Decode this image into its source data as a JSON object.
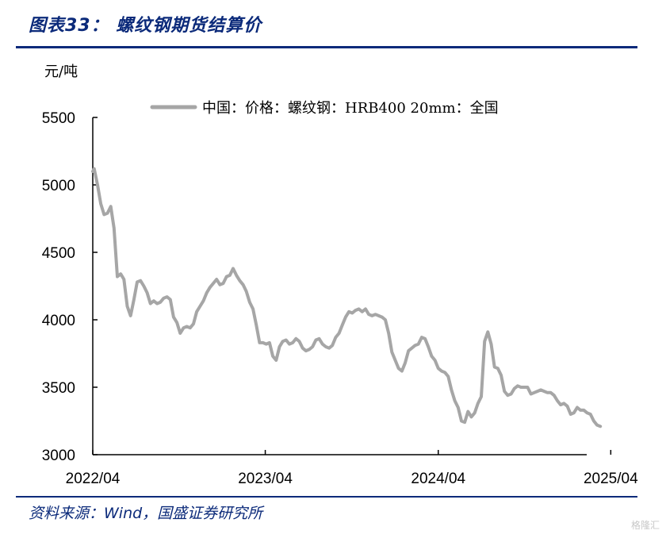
{
  "header": {
    "title": "图表33： 螺纹钢期货结算价"
  },
  "footer": {
    "source": "资料来源：Wind，国盛证券研究所"
  },
  "watermark": {
    "text": "格隆汇"
  },
  "chart_data": {
    "type": "line",
    "title": "",
    "ylabel": "元/吨",
    "xlabel": "",
    "ylim": [
      3000,
      5500
    ],
    "yticks": [
      3000,
      3500,
      4000,
      4500,
      5000,
      5500
    ],
    "xlim": [
      "2022-04-01",
      "2025-05-04"
    ],
    "xticks": [
      {
        "label": "2022/04",
        "date": "2022-04-01"
      },
      {
        "label": "2023/04",
        "date": "2023-04-01"
      },
      {
        "label": "2024/04",
        "date": "2024-04-01"
      },
      {
        "label": "2025/04",
        "date": "2025-04-01"
      }
    ],
    "legend_position": "top",
    "series": [
      {
        "name": "中国：价格：螺纹钢：HRB400 20mm：全国",
        "color": "#a6a6a6",
        "data": [
          [
            "2022-04-01",
            5100
          ],
          [
            "2022-04-04",
            5120
          ],
          [
            "2022-04-11",
            5000
          ],
          [
            "2022-04-18",
            4860
          ],
          [
            "2022-04-25",
            4780
          ],
          [
            "2022-05-02",
            4790
          ],
          [
            "2022-05-09",
            4840
          ],
          [
            "2022-05-16",
            4680
          ],
          [
            "2022-05-23",
            4320
          ],
          [
            "2022-05-30",
            4340
          ],
          [
            "2022-06-06",
            4300
          ],
          [
            "2022-06-13",
            4100
          ],
          [
            "2022-06-20",
            4030
          ],
          [
            "2022-06-27",
            4150
          ],
          [
            "2022-07-04",
            4280
          ],
          [
            "2022-07-11",
            4290
          ],
          [
            "2022-07-18",
            4250
          ],
          [
            "2022-07-25",
            4200
          ],
          [
            "2022-08-01",
            4120
          ],
          [
            "2022-08-08",
            4140
          ],
          [
            "2022-08-15",
            4120
          ],
          [
            "2022-08-22",
            4130
          ],
          [
            "2022-08-29",
            4160
          ],
          [
            "2022-09-05",
            4170
          ],
          [
            "2022-09-12",
            4150
          ],
          [
            "2022-09-19",
            4020
          ],
          [
            "2022-09-26",
            3980
          ],
          [
            "2022-10-03",
            3900
          ],
          [
            "2022-10-10",
            3940
          ],
          [
            "2022-10-17",
            3950
          ],
          [
            "2022-10-24",
            3940
          ],
          [
            "2022-10-31",
            3970
          ],
          [
            "2022-11-07",
            4060
          ],
          [
            "2022-11-14",
            4100
          ],
          [
            "2022-11-21",
            4140
          ],
          [
            "2022-11-28",
            4200
          ],
          [
            "2022-12-05",
            4240
          ],
          [
            "2022-12-12",
            4270
          ],
          [
            "2022-12-19",
            4300
          ],
          [
            "2022-12-26",
            4260
          ],
          [
            "2023-01-02",
            4270
          ],
          [
            "2023-01-09",
            4320
          ],
          [
            "2023-01-16",
            4330
          ],
          [
            "2023-01-23",
            4380
          ],
          [
            "2023-01-30",
            4330
          ],
          [
            "2023-02-06",
            4290
          ],
          [
            "2023-02-13",
            4260
          ],
          [
            "2023-02-20",
            4210
          ],
          [
            "2023-02-27",
            4130
          ],
          [
            "2023-03-06",
            4080
          ],
          [
            "2023-03-13",
            3960
          ],
          [
            "2023-03-20",
            3830
          ],
          [
            "2023-03-27",
            3830
          ],
          [
            "2023-04-03",
            3820
          ],
          [
            "2023-04-10",
            3830
          ],
          [
            "2023-04-17",
            3730
          ],
          [
            "2023-04-24",
            3700
          ],
          [
            "2023-05-01",
            3800
          ],
          [
            "2023-05-08",
            3840
          ],
          [
            "2023-05-15",
            3850
          ],
          [
            "2023-05-22",
            3820
          ],
          [
            "2023-05-29",
            3830
          ],
          [
            "2023-06-05",
            3860
          ],
          [
            "2023-06-12",
            3840
          ],
          [
            "2023-06-19",
            3790
          ],
          [
            "2023-06-26",
            3770
          ],
          [
            "2023-07-03",
            3780
          ],
          [
            "2023-07-10",
            3800
          ],
          [
            "2023-07-17",
            3850
          ],
          [
            "2023-07-24",
            3860
          ],
          [
            "2023-07-31",
            3820
          ],
          [
            "2023-08-07",
            3800
          ],
          [
            "2023-08-14",
            3790
          ],
          [
            "2023-08-21",
            3810
          ],
          [
            "2023-08-28",
            3870
          ],
          [
            "2023-09-04",
            3900
          ],
          [
            "2023-09-11",
            3960
          ],
          [
            "2023-09-18",
            4020
          ],
          [
            "2023-09-25",
            4060
          ],
          [
            "2023-10-02",
            4050
          ],
          [
            "2023-10-09",
            4070
          ],
          [
            "2023-10-16",
            4080
          ],
          [
            "2023-10-23",
            4060
          ],
          [
            "2023-10-30",
            4080
          ],
          [
            "2023-11-06",
            4040
          ],
          [
            "2023-11-13",
            4030
          ],
          [
            "2023-11-20",
            4040
          ],
          [
            "2023-11-27",
            4030
          ],
          [
            "2023-12-04",
            4020
          ],
          [
            "2023-12-11",
            4000
          ],
          [
            "2023-12-18",
            3900
          ],
          [
            "2023-12-25",
            3760
          ],
          [
            "2024-01-01",
            3700
          ],
          [
            "2024-01-08",
            3640
          ],
          [
            "2024-01-15",
            3620
          ],
          [
            "2024-01-22",
            3680
          ],
          [
            "2024-01-29",
            3770
          ],
          [
            "2024-02-05",
            3790
          ],
          [
            "2024-02-12",
            3810
          ],
          [
            "2024-02-19",
            3820
          ],
          [
            "2024-02-26",
            3870
          ],
          [
            "2024-03-04",
            3860
          ],
          [
            "2024-03-11",
            3800
          ],
          [
            "2024-03-18",
            3730
          ],
          [
            "2024-03-25",
            3700
          ],
          [
            "2024-04-01",
            3640
          ],
          [
            "2024-04-08",
            3620
          ],
          [
            "2024-04-15",
            3610
          ],
          [
            "2024-04-22",
            3580
          ],
          [
            "2024-04-29",
            3480
          ],
          [
            "2024-05-06",
            3400
          ],
          [
            "2024-05-13",
            3350
          ],
          [
            "2024-05-20",
            3250
          ],
          [
            "2024-05-27",
            3240
          ],
          [
            "2024-06-03",
            3320
          ],
          [
            "2024-06-10",
            3280
          ],
          [
            "2024-06-17",
            3310
          ],
          [
            "2024-06-24",
            3380
          ],
          [
            "2024-07-01",
            3430
          ],
          [
            "2024-07-08",
            3840
          ],
          [
            "2024-07-15",
            3910
          ],
          [
            "2024-07-22",
            3820
          ],
          [
            "2024-07-29",
            3650
          ],
          [
            "2024-08-05",
            3640
          ],
          [
            "2024-08-12",
            3590
          ],
          [
            "2024-08-19",
            3470
          ],
          [
            "2024-08-26",
            3440
          ],
          [
            "2024-09-02",
            3450
          ],
          [
            "2024-09-09",
            3490
          ],
          [
            "2024-09-16",
            3510
          ],
          [
            "2024-09-23",
            3500
          ],
          [
            "2024-09-30",
            3500
          ],
          [
            "2024-10-07",
            3500
          ],
          [
            "2024-10-14",
            3450
          ],
          [
            "2024-10-21",
            3460
          ],
          [
            "2024-10-28",
            3470
          ],
          [
            "2024-11-04",
            3480
          ],
          [
            "2024-11-11",
            3470
          ],
          [
            "2024-11-18",
            3460
          ],
          [
            "2024-11-25",
            3460
          ],
          [
            "2024-12-02",
            3440
          ],
          [
            "2024-12-09",
            3400
          ],
          [
            "2024-12-16",
            3370
          ],
          [
            "2024-12-23",
            3380
          ],
          [
            "2024-12-30",
            3360
          ],
          [
            "2025-01-06",
            3300
          ],
          [
            "2025-01-13",
            3310
          ],
          [
            "2025-01-20",
            3350
          ],
          [
            "2025-01-27",
            3330
          ],
          [
            "2025-02-03",
            3330
          ],
          [
            "2025-02-10",
            3310
          ],
          [
            "2025-02-17",
            3300
          ],
          [
            "2025-02-24",
            3250
          ],
          [
            "2025-03-03",
            3220
          ],
          [
            "2025-03-10",
            3210
          ]
        ]
      }
    ]
  }
}
